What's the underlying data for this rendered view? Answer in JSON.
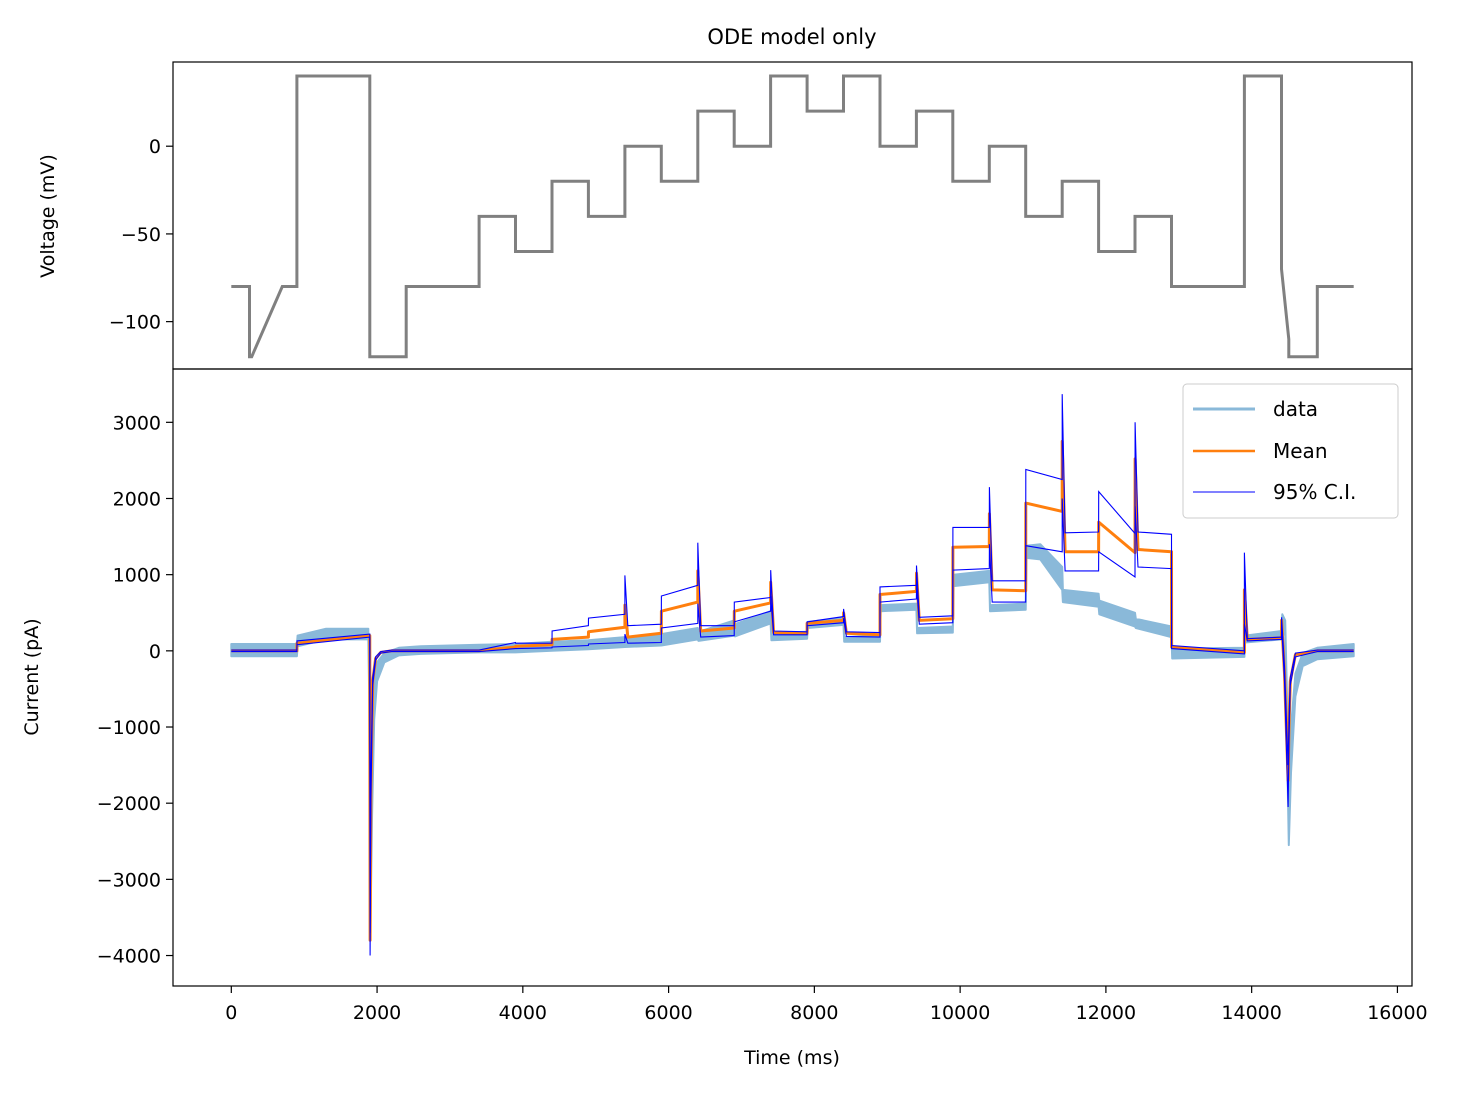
{
  "chart_data": [
    {
      "type": "line",
      "title": "ODE model only",
      "xlabel": "",
      "ylabel": "Voltage (mV)",
      "xlim": [
        -800,
        16200
      ],
      "ylim": [
        -127,
        48
      ],
      "yticks": [
        -100,
        -50,
        0
      ],
      "ytick_labels": [
        "−100",
        "−50",
        "0"
      ],
      "grid": false,
      "line_color": "#808080",
      "series": [
        {
          "x": [
            0,
            250,
            250,
            280,
            700,
            900,
            900,
            1900,
            1900,
            2400,
            2400,
            3400,
            3400,
            3900,
            3900,
            4400,
            4400,
            4900,
            4900,
            5400,
            5400,
            5900,
            5900,
            6400,
            6400,
            6900,
            6900,
            7400,
            7400,
            7900,
            7900,
            8400,
            8400,
            8900,
            8900,
            9400,
            9400,
            9900,
            9900,
            10400,
            10400,
            10900,
            10900,
            11400,
            11400,
            11900,
            11900,
            12400,
            12400,
            12900,
            12900,
            13900,
            13900,
            14410,
            14410,
            14510,
            14510,
            14900,
            14900,
            15400
          ],
          "y": [
            -80,
            -80,
            -120,
            -120,
            -80,
            -80,
            40,
            40,
            -120,
            -120,
            -80,
            -80,
            -40,
            -40,
            -60,
            -60,
            -20,
            -20,
            -40,
            -40,
            0,
            0,
            -20,
            -20,
            20,
            20,
            0,
            0,
            40,
            40,
            20,
            20,
            40,
            40,
            0,
            0,
            20,
            20,
            -20,
            -20,
            0,
            0,
            -40,
            -40,
            -20,
            -20,
            -60,
            -60,
            -40,
            -40,
            -80,
            -80,
            40,
            40,
            -70,
            -110,
            -120,
            -120,
            -80,
            -80
          ]
        }
      ]
    },
    {
      "type": "line",
      "title": "",
      "xlabel": "Time (ms)",
      "ylabel": "Current (pA)",
      "xlim": [
        -800,
        16200
      ],
      "ylim": [
        -4400,
        3700
      ],
      "xticks": [
        0,
        2000,
        4000,
        6000,
        8000,
        10000,
        12000,
        14000,
        16000
      ],
      "xtick_labels": [
        "0",
        "2000",
        "4000",
        "6000",
        "8000",
        "10000",
        "12000",
        "14000",
        "16000"
      ],
      "yticks": [
        -4000,
        -3000,
        -2000,
        -1000,
        0,
        1000,
        2000,
        3000
      ],
      "ytick_labels": [
        "−4000",
        "−3000",
        "−2000",
        "−1000",
        "0",
        "1000",
        "2000",
        "3000"
      ],
      "grid": false,
      "legend": {
        "position": "top-right",
        "entries": [
          "data",
          "Mean",
          "95% C.I."
        ]
      },
      "series": [
        {
          "name": "data",
          "color": "#8ab9d9",
          "band": {
            "x": [
              0,
              900,
              910,
              1300,
              1880,
              1890,
              1910,
              1930,
              1960,
              2000,
              2100,
              2300,
              2600,
              3400,
              3900,
              4400,
              4900,
              5400,
              5900,
              6400,
              6410,
              6900,
              6910,
              7400,
              7410,
              7900,
              7910,
              8400,
              8410,
              8900,
              8910,
              9400,
              9410,
              9900,
              9910,
              10400,
              10410,
              10900,
              10910,
              11100,
              11400,
              11410,
              11900,
              11910,
              12400,
              12410,
              12900,
              12910,
              13900,
              13910,
              14410,
              14420,
              14460,
              14490,
              14510,
              14540,
              14600,
              14700,
              14900,
              15400
            ],
            "upper": [
              90,
              90,
              200,
              290,
              290,
              -300,
              -3000,
              -1500,
              -500,
              -150,
              -30,
              40,
              60,
              80,
              90,
              120,
              140,
              180,
              220,
              300,
              250,
              400,
              350,
              520,
              230,
              250,
              380,
              430,
              180,
              200,
              600,
              620,
              300,
              320,
              1000,
              1050,
              600,
              620,
              1380,
              1400,
              1100,
              800,
              750,
              660,
              500,
              420,
              320,
              30,
              40,
              200,
              260,
              480,
              400,
              -800,
              -2000,
              -1000,
              -300,
              -30,
              40,
              90
            ],
            "lower": [
              -70,
              -70,
              60,
              150,
              150,
              -500,
              -3600,
              -2200,
              -900,
              -400,
              -150,
              -60,
              -40,
              -20,
              -20,
              0,
              20,
              50,
              70,
              150,
              130,
              200,
              190,
              360,
              140,
              160,
              300,
              340,
              120,
              120,
              520,
              540,
              230,
              240,
              850,
              900,
              520,
              540,
              1220,
              1200,
              800,
              640,
              580,
              480,
              320,
              300,
              180,
              -100,
              -80,
              110,
              150,
              300,
              200,
              -1500,
              -2550,
              -1600,
              -600,
              -200,
              -110,
              -70
            ]
          }
        },
        {
          "name": "Mean",
          "color": "#ff7f0e",
          "x": [
            0,
            900,
            901,
            1900,
            1901,
            1905,
            1915,
            1940,
            1980,
            2050,
            2200,
            2400,
            3400,
            3900,
            3901,
            4400,
            4401,
            4900,
            4901,
            5400,
            5401,
            5440,
            5900,
            5901,
            6400,
            6401,
            6440,
            6900,
            6901,
            7400,
            7401,
            7440,
            7900,
            7901,
            8400,
            8401,
            8440,
            8900,
            8901,
            9400,
            9401,
            9440,
            9900,
            9901,
            10400,
            10401,
            10440,
            10900,
            10901,
            11400,
            11401,
            11440,
            11900,
            11901,
            12400,
            12401,
            12440,
            12900,
            12901,
            13900,
            13901,
            13940,
            14410,
            14411,
            14450,
            14500,
            14512,
            14530,
            14600,
            14900,
            15400
          ],
          "y": [
            0,
            0,
            100,
            200,
            -1500,
            -3800,
            -1800,
            -400,
            -100,
            -20,
            0,
            0,
            0,
            50,
            60,
            80,
            150,
            180,
            250,
            310,
            600,
            180,
            230,
            520,
            640,
            1050,
            260,
            300,
            520,
            630,
            900,
            240,
            230,
            360,
            400,
            500,
            230,
            210,
            740,
            780,
            1020,
            400,
            420,
            1360,
            1370,
            1800,
            800,
            790,
            1940,
            1830,
            2750,
            1300,
            1300,
            1690,
            1290,
            2520,
            1330,
            1300,
            50,
            -20,
            800,
            150,
            170,
            400,
            -300,
            -1700,
            -1000,
            -400,
            -50,
            0,
            0
          ]
        },
        {
          "name": "95% C.I.",
          "color": "#0000ff",
          "upper": {
            "x": [
              0,
              900,
              901,
              1900,
              1901,
              1905,
              1915,
              1940,
              1980,
              2050,
              2200,
              2400,
              3400,
              3900,
              3901,
              4400,
              4401,
              4900,
              4901,
              5400,
              5401,
              5440,
              5900,
              5901,
              6400,
              6401,
              6440,
              6900,
              6901,
              7400,
              7401,
              7440,
              7900,
              7901,
              8400,
              8401,
              8440,
              8900,
              8901,
              9400,
              9401,
              9440,
              9900,
              9901,
              10400,
              10401,
              10440,
              10900,
              10901,
              11400,
              11401,
              11440,
              11900,
              11901,
              12400,
              12401,
              12440,
              12900,
              12901,
              13900,
              13901,
              13940,
              14410,
              14411,
              14450,
              14500,
              14512,
              14530,
              14600,
              14900,
              15400
            ],
            "y": [
              10,
              10,
              130,
              220,
              -1400,
              -3700,
              -1600,
              -350,
              -80,
              -10,
              10,
              10,
              10,
              110,
              100,
              100,
              260,
              330,
              430,
              480,
              990,
              330,
              350,
              720,
              860,
              1420,
              330,
              330,
              640,
              700,
              1060,
              260,
              250,
              380,
              450,
              550,
              250,
              240,
              840,
              860,
              1120,
              440,
              460,
              1620,
              1620,
              2150,
              920,
              920,
              2380,
              2250,
              3370,
              1550,
              1560,
              2090,
              1540,
              3000,
              1560,
              1530,
              70,
              0,
              1290,
              160,
              180,
              440,
              -200,
              -1500,
              -900,
              -350,
              -30,
              10,
              10
            ]
          },
          "lower": {
            "x": [
              0,
              900,
              901,
              1900,
              1901,
              1905,
              1915,
              1940,
              1980,
              2050,
              2200,
              2400,
              3400,
              3900,
              3901,
              4400,
              4401,
              4900,
              4901,
              5400,
              5401,
              5440,
              5900,
              5901,
              6400,
              6401,
              6440,
              6900,
              6901,
              7400,
              7401,
              7440,
              7900,
              7901,
              8400,
              8401,
              8440,
              8900,
              8901,
              9400,
              9401,
              9440,
              9900,
              9901,
              10400,
              10401,
              10440,
              10900,
              10901,
              11400,
              11401,
              11440,
              11900,
              11901,
              12400,
              12401,
              12440,
              12900,
              12901,
              13900,
              13901,
              13940,
              14410,
              14411,
              14450,
              14500,
              14512,
              14530,
              14600,
              14900,
              15400
            ],
            "y": [
              -10,
              -10,
              80,
              180,
              -1600,
              -4000,
              -2000,
              -450,
              -120,
              -30,
              -10,
              -10,
              -10,
              30,
              30,
              40,
              50,
              70,
              90,
              110,
              220,
              100,
              110,
              300,
              360,
              620,
              180,
              200,
              380,
              520,
              720,
              210,
              210,
              330,
              370,
              430,
              190,
              180,
              640,
              680,
              880,
              350,
              370,
              1060,
              1080,
              1400,
              640,
              640,
              1380,
              1300,
              2000,
              1050,
              1050,
              1300,
              970,
              1900,
              1100,
              1080,
              30,
              -40,
              350,
              130,
              150,
              340,
              -400,
              -2050,
              -1200,
              -450,
              -80,
              -10,
              -10
            ]
          }
        }
      ]
    }
  ]
}
